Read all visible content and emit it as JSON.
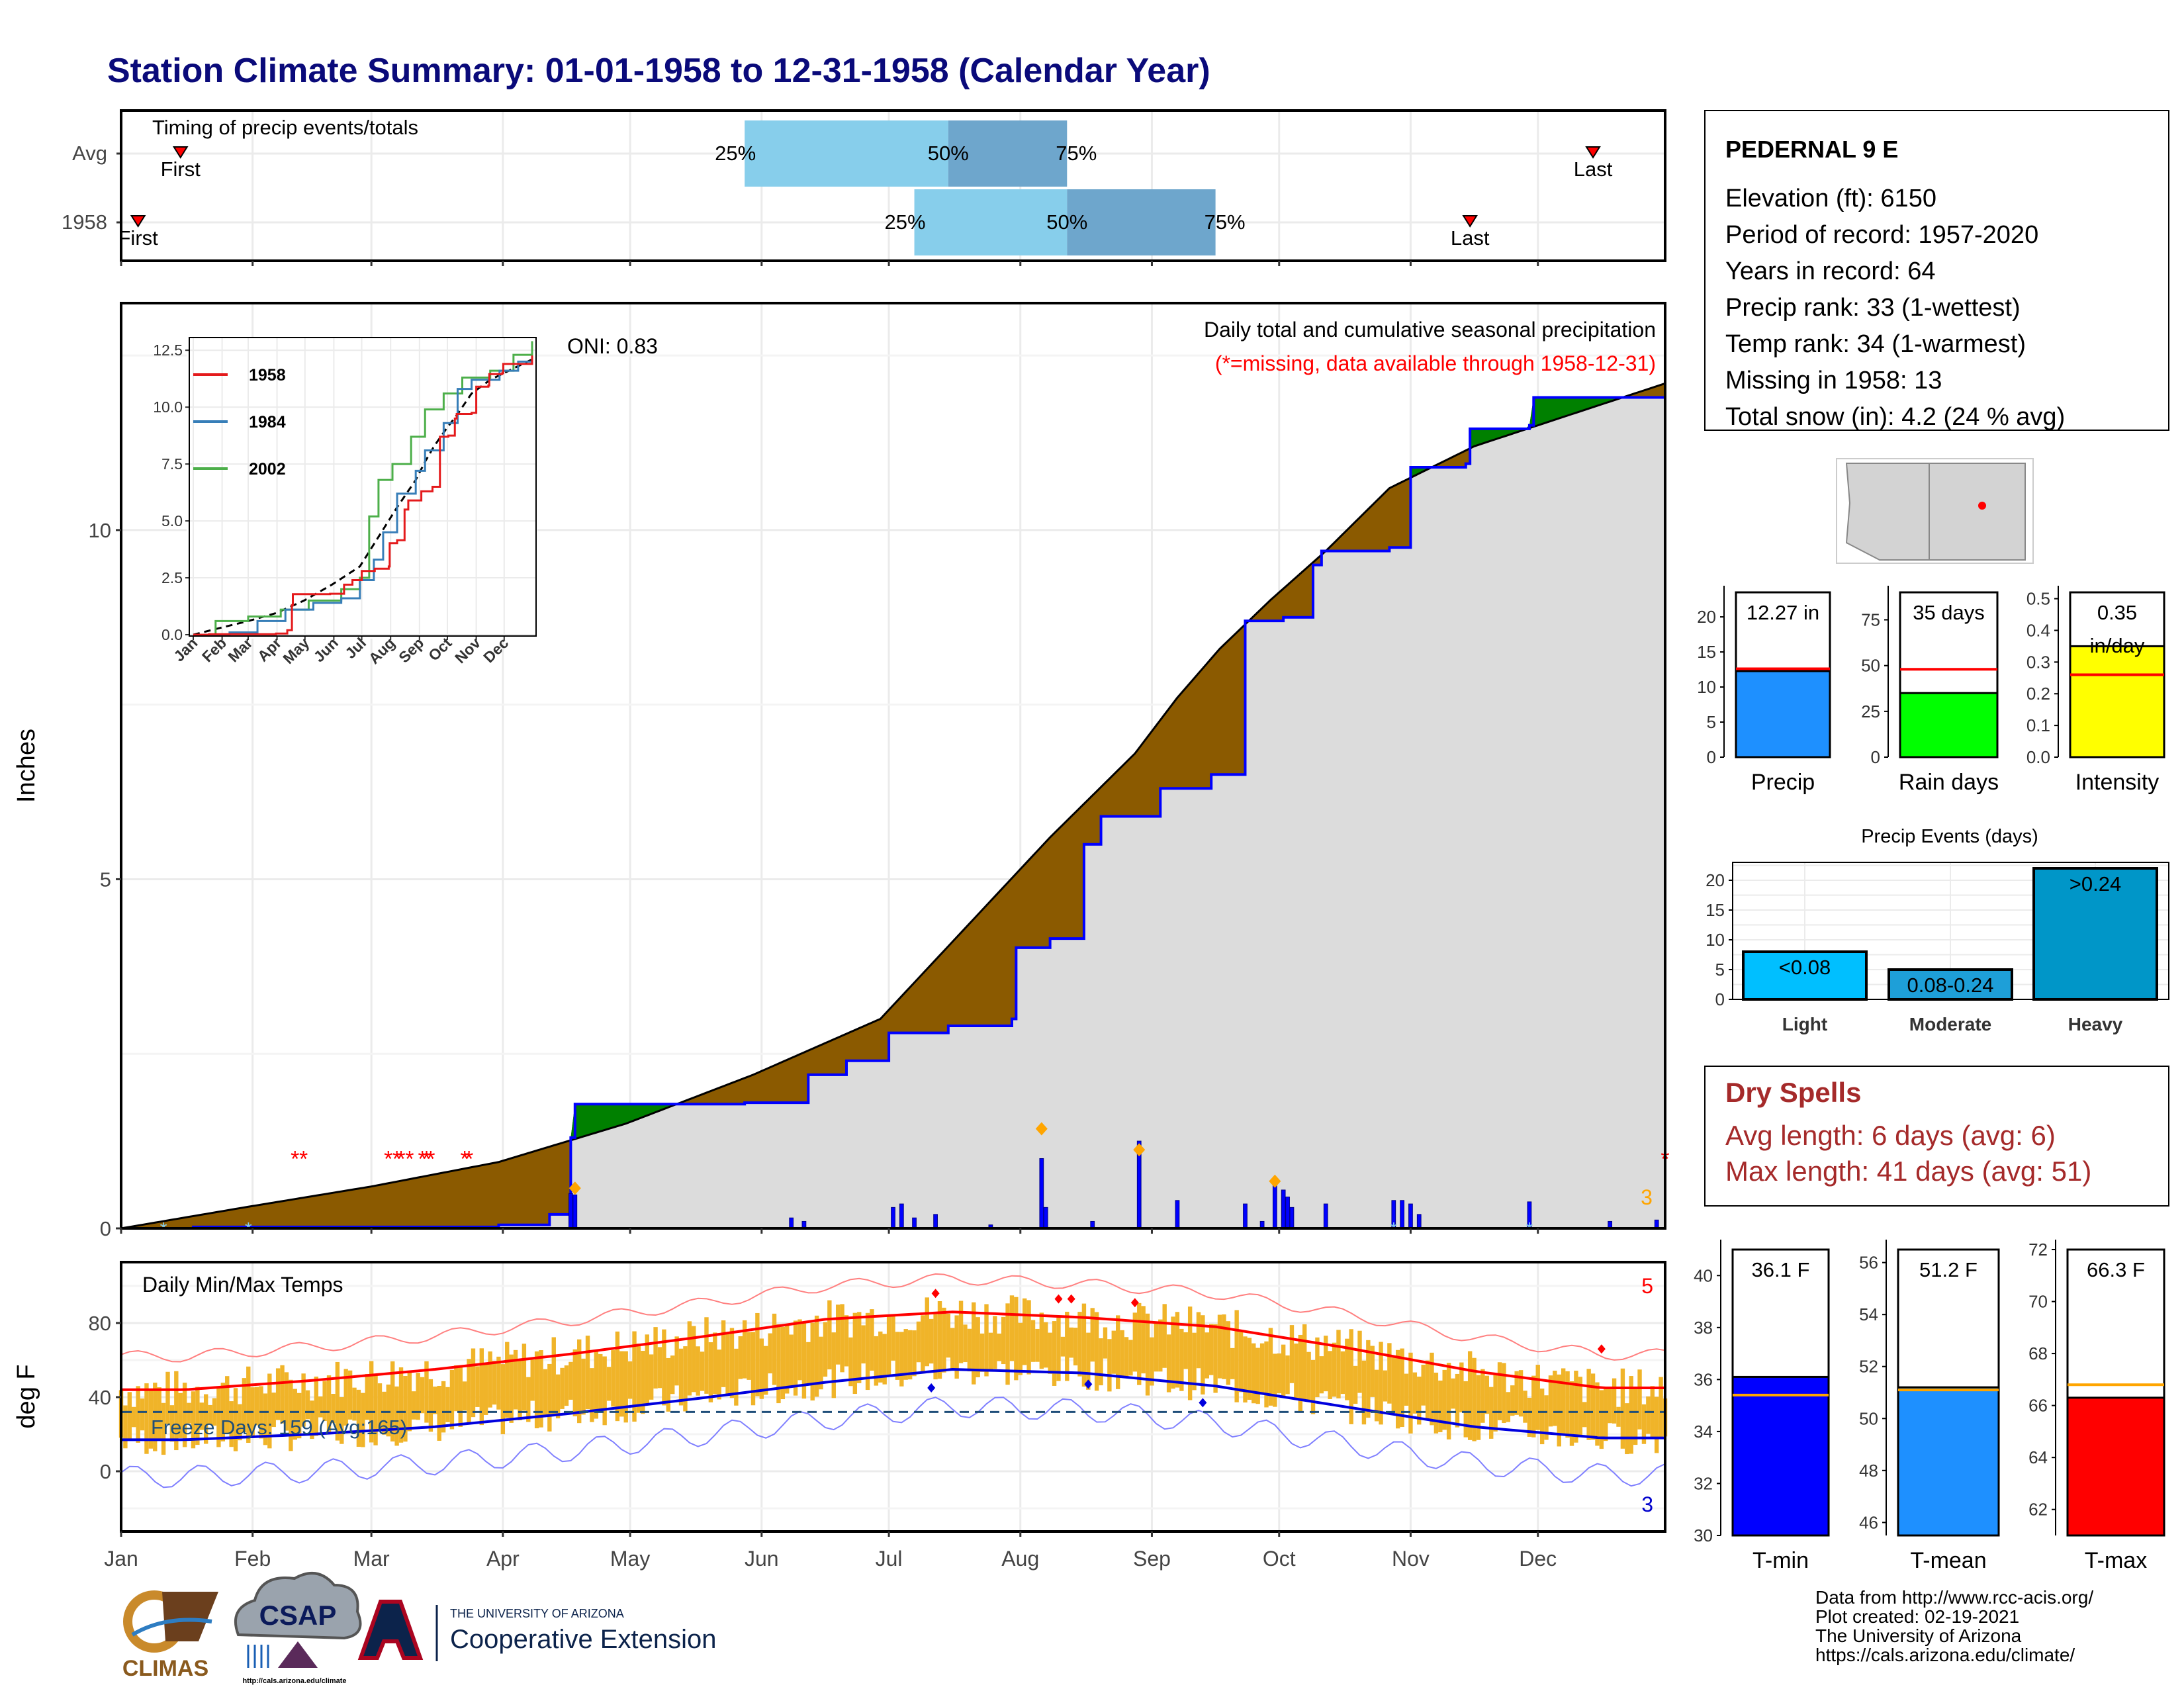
{
  "page_title": "Station Climate Summary: 01-01-1958 to 12-31-1958 (Calendar Year)",
  "colors": {
    "title": "#0a0a7a",
    "light_blue": "#87ceeb",
    "mid_blue": "#6ea6cc",
    "brown": "#8b5a00",
    "green": "#008000",
    "gray_area": "#dcdcdc",
    "bar_blue": "#0000ff",
    "temp_gold": "#f0b429",
    "red": "#ff0000",
    "dry_spells": "#a52a2a"
  },
  "timing_panel": {
    "label": "Timing of precip events/totals",
    "rows": [
      {
        "name": "Avg",
        "first_doy": 15,
        "last_doy": 348,
        "p25_doy": 148,
        "p50_doy": 196,
        "p75_doy": 224,
        "first_label": "First",
        "last_label": "Last",
        "p25_label": "25%",
        "p50_label": "50%",
        "p75_label": "75%"
      },
      {
        "name": "1958",
        "first_doy": 5,
        "last_doy": 319,
        "p25_doy": 188,
        "p50_doy": 224,
        "p75_doy": 259,
        "first_label": "First",
        "last_label": "Last",
        "p25_label": "25%",
        "p50_label": "50%",
        "p75_label": "75%"
      }
    ]
  },
  "main_panel": {
    "title": "Daily total and cumulative seasonal precipitation",
    "subtitle": "(*=missing, data available through 1958-12-31)",
    "oni": "ONI: 0.83",
    "y_label": "Inches",
    "y_ticks": [
      "0",
      "5",
      "10"
    ],
    "count_label": "3"
  },
  "inset": {
    "y_ticks": [
      "0.0",
      "2.5",
      "5.0",
      "7.5",
      "10.0",
      "12.5"
    ],
    "x_ticks": [
      "Jan",
      "Feb",
      "Mar",
      "Apr",
      "May",
      "Jun",
      "Jul",
      "Aug",
      "Sep",
      "Oct",
      "Nov",
      "Dec"
    ],
    "legend": [
      {
        "name": "1958",
        "color": "#e41a1c"
      },
      {
        "name": "1984",
        "color": "#377eb8"
      },
      {
        "name": "2002",
        "color": "#4daf4a"
      }
    ]
  },
  "months": [
    "Jan",
    "Feb",
    "Mar",
    "Apr",
    "May",
    "Jun",
    "Jul",
    "Aug",
    "Sep",
    "Oct",
    "Nov",
    "Dec"
  ],
  "temp_panel": {
    "title": "Daily Min/Max Temps",
    "y_label": "deg F",
    "y_ticks": [
      "0",
      "40",
      "80"
    ],
    "freeze_label": "Freeze Days: 159 (Avg:165)",
    "count_top": "5",
    "count_bottom": "3"
  },
  "station": {
    "name": "PEDERNAL 9 E",
    "lines": [
      "Elevation (ft): 6150",
      "Period of record: 1957-2020",
      "Years in record: 64",
      "Precip rank: 33 (1-wettest)",
      "Temp rank: 34 (1-warmest)",
      "Missing in 1958: 13",
      "Total snow (in): 4.2 (24 % avg)"
    ]
  },
  "precip_bars": [
    {
      "label": "Precip",
      "value_label": "12.27 in",
      "value": 12.27,
      "avg": 12.6,
      "ymax": 23.5,
      "ticks": [
        "0",
        "5",
        "10",
        "15",
        "20"
      ],
      "color": "#1e90ff"
    },
    {
      "label": "Rain days",
      "value_label": "35 days",
      "value": 35,
      "avg": 48,
      "ymax": 90,
      "ticks": [
        "0",
        "25",
        "50",
        "75"
      ],
      "color": "#00ff00"
    },
    {
      "label": "Intensity",
      "value_label": "0.35",
      "value_label2": "in/day",
      "value": 0.35,
      "avg": 0.26,
      "ymax": 0.52,
      "ticks": [
        "0.0",
        "0.1",
        "0.2",
        "0.3",
        "0.4",
        "0.5"
      ],
      "color": "#ffff00"
    }
  ],
  "precip_events": {
    "title": "Precip Events (days)",
    "y_ticks": [
      "0",
      "5",
      "10",
      "15",
      "20"
    ],
    "bars": [
      {
        "category": "Light",
        "value": 8,
        "label": "<0.08",
        "color": "#00bfff"
      },
      {
        "category": "Moderate",
        "value": 5,
        "label": "0.08-0.24",
        "color": "#1e9fd8"
      },
      {
        "category": "Heavy",
        "value": 22,
        "label": ">0.24",
        "color": "#0096c8"
      }
    ]
  },
  "dry_spells": {
    "title": "Dry Spells",
    "line1": "Avg length: 6 days (avg: 6)",
    "line2": "Max length: 41 days (avg: 51)"
  },
  "temp_bars": [
    {
      "label": "T-min",
      "value_label": "36.1 F",
      "value": 36.1,
      "avg": 35.4,
      "ymin": 30,
      "ymax": 41,
      "ticks": [
        "30",
        "32",
        "34",
        "36",
        "38",
        "40"
      ],
      "color": "#0000ff"
    },
    {
      "label": "T-mean",
      "value_label": "51.2 F",
      "value": 51.2,
      "avg": 51.1,
      "ymin": 45.5,
      "ymax": 56.5,
      "ticks": [
        "46",
        "48",
        "50",
        "52",
        "54",
        "56"
      ],
      "color": "#1e90ff"
    },
    {
      "label": "T-max",
      "value_label": "66.3 F",
      "value": 66.3,
      "avg": 66.8,
      "ymin": 61,
      "ymax": 72,
      "ticks": [
        "62",
        "64",
        "66",
        "68",
        "70",
        "72"
      ],
      "color": "#ff0000"
    }
  ],
  "footer": {
    "lines": [
      "Data from http://www.rcc-acis.org/",
      "Plot created: 02-19-2021",
      "The University of Arizona",
      "https://cals.arizona.edu/climate/"
    ],
    "climas": "CLIMAS",
    "csap": "CSAP",
    "csap_url": "http://cals.arizona.edu/climate",
    "ua_small": "THE UNIVERSITY OF ARIZONA",
    "ua_big": "Cooperative Extension"
  },
  "chart_data": {
    "type": "area",
    "title": "Daily total and cumulative seasonal precipitation",
    "ylabel": "Inches",
    "ylim": [
      0,
      13.2
    ],
    "x_unit": "day of year (1958)",
    "cumulative_1958": [
      [
        1,
        0
      ],
      [
        18,
        0.02
      ],
      [
        45,
        0.02
      ],
      [
        85,
        0.02
      ],
      [
        90,
        0.05
      ],
      [
        102,
        0.2
      ],
      [
        107,
        1.3
      ],
      [
        108,
        1.78
      ],
      [
        130,
        1.78
      ],
      [
        148,
        1.8
      ],
      [
        163,
        2.2
      ],
      [
        172,
        2.4
      ],
      [
        182,
        2.8
      ],
      [
        196,
        2.9
      ],
      [
        211,
        3.0
      ],
      [
        212,
        4.02
      ],
      [
        220,
        4.15
      ],
      [
        228,
        4.15
      ],
      [
        228,
        5.5
      ],
      [
        232,
        5.9
      ],
      [
        246,
        6.3
      ],
      [
        258,
        6.5
      ],
      [
        266,
        8.7
      ],
      [
        275,
        8.75
      ],
      [
        282,
        9.5
      ],
      [
        284,
        9.7
      ],
      [
        300,
        9.75
      ],
      [
        305,
        10.9
      ],
      [
        318,
        10.95
      ],
      [
        319,
        11.45
      ],
      [
        333,
        11.5
      ],
      [
        334,
        11.9
      ],
      [
        365,
        12.27
      ]
    ],
    "average_cumulative": [
      [
        1,
        0
      ],
      [
        30,
        0.3
      ],
      [
        60,
        0.6
      ],
      [
        90,
        0.95
      ],
      [
        120,
        1.5
      ],
      [
        150,
        2.2
      ],
      [
        180,
        3.0
      ],
      [
        200,
        4.3
      ],
      [
        220,
        5.6
      ],
      [
        240,
        6.8
      ],
      [
        250,
        7.6
      ],
      [
        260,
        8.3
      ],
      [
        272,
        9.0
      ],
      [
        285,
        9.7
      ],
      [
        300,
        10.6
      ],
      [
        320,
        11.2
      ],
      [
        340,
        11.6
      ],
      [
        365,
        12.1
      ]
    ],
    "daily_precip": [
      [
        107,
        0.5
      ],
      [
        108,
        0.48
      ],
      [
        159,
        0.15
      ],
      [
        162,
        0.1
      ],
      [
        183,
        0.3
      ],
      [
        185,
        0.35
      ],
      [
        188,
        0.15
      ],
      [
        193,
        0.2
      ],
      [
        206,
        0.05
      ],
      [
        218,
        1.0
      ],
      [
        219,
        0.3
      ],
      [
        230,
        0.1
      ],
      [
        241,
        1.25
      ],
      [
        250,
        0.4
      ],
      [
        266,
        0.35
      ],
      [
        270,
        0.1
      ],
      [
        273,
        0.65
      ],
      [
        275,
        0.55
      ],
      [
        276,
        0.45
      ],
      [
        277,
        0.3
      ],
      [
        285,
        0.35
      ],
      [
        301,
        0.4
      ],
      [
        303,
        0.4
      ],
      [
        305,
        0.35
      ],
      [
        307,
        0.2
      ],
      [
        333,
        0.38
      ],
      [
        352,
        0.1
      ],
      [
        363,
        0.12
      ]
    ],
    "temperature": {
      "ylabel": "deg F",
      "ylim": [
        -30,
        110
      ],
      "avg_max_monthly": [
        44,
        49,
        55,
        63,
        72,
        82,
        86,
        83,
        78,
        67,
        54,
        45
      ],
      "avg_min_monthly": [
        17,
        20,
        24,
        31,
        39,
        48,
        55,
        53,
        46,
        35,
        24,
        18
      ],
      "freeze_days": 159,
      "freeze_days_avg": 165
    }
  }
}
